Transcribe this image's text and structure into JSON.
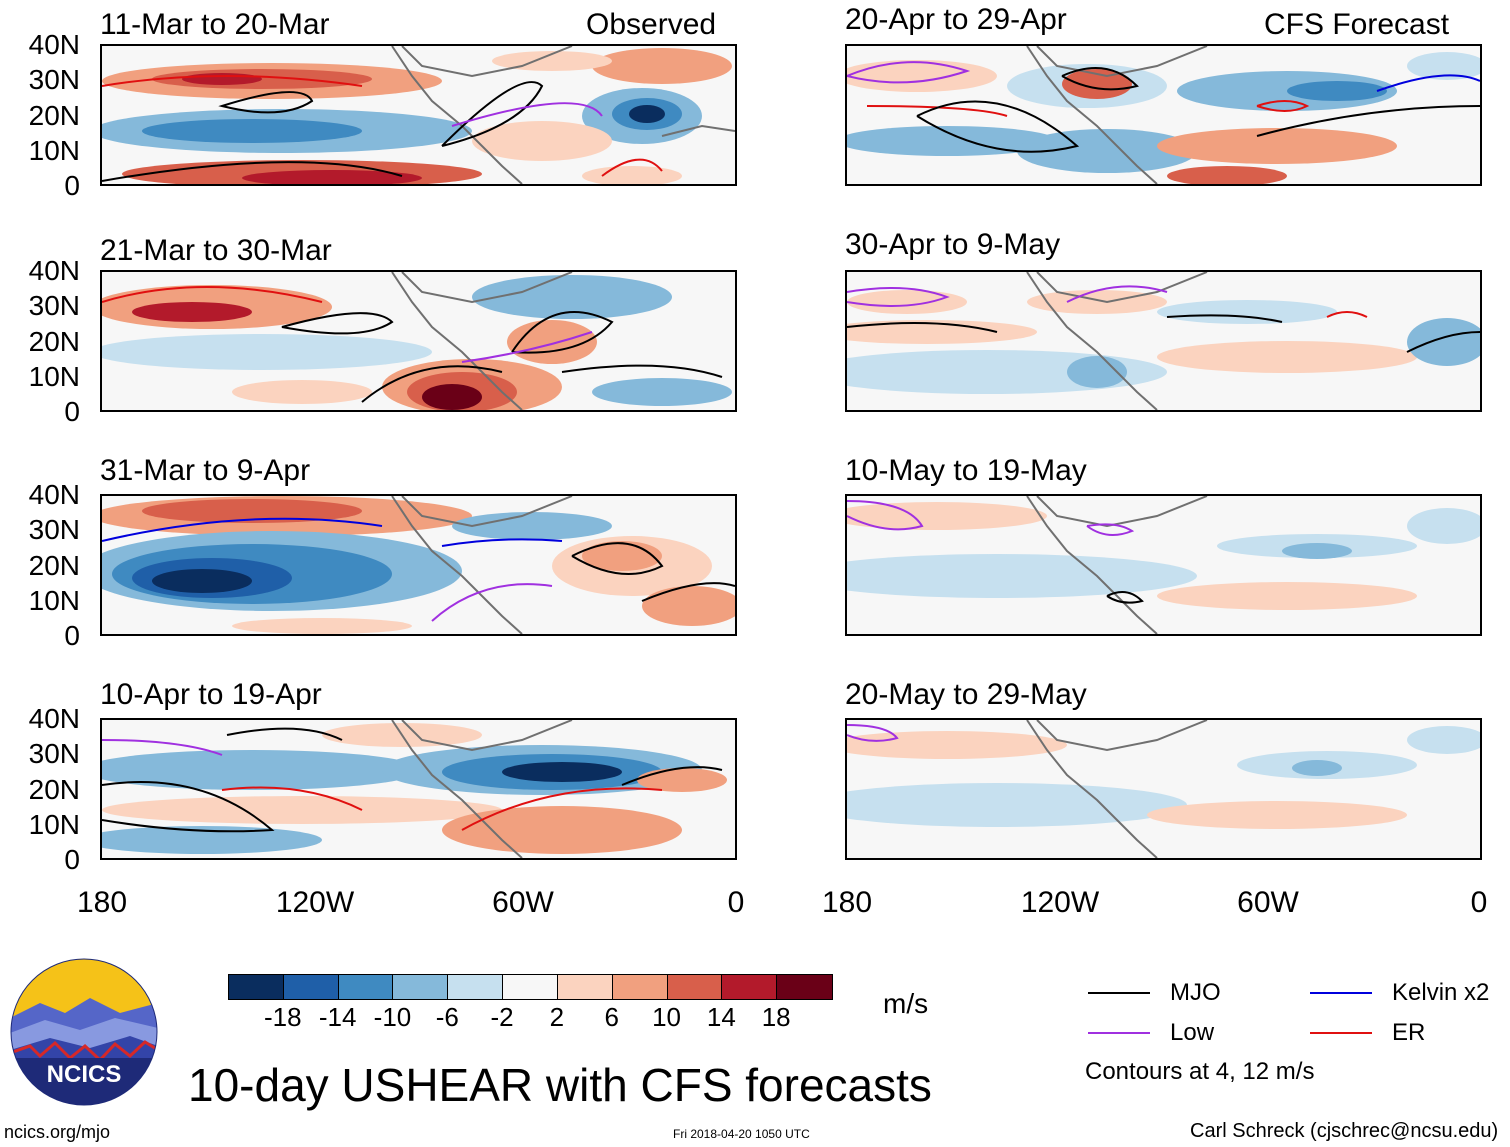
{
  "title": "10-day USHEAR with CFS forecasts",
  "units": "m/s",
  "left_column_tag": "Observed",
  "right_column_tag": "CFS Forecast",
  "panels_left": [
    {
      "title": "11-Mar to 20-Mar"
    },
    {
      "title": "21-Mar to 30-Mar"
    },
    {
      "title": "31-Mar to 9-Apr"
    },
    {
      "title": "10-Apr to 19-Apr"
    }
  ],
  "panels_right": [
    {
      "title": "20-Apr to 29-Apr"
    },
    {
      "title": "30-Apr to 9-May"
    },
    {
      "title": "10-May to 19-May"
    },
    {
      "title": "20-May to 29-May"
    }
  ],
  "lat_labels": [
    "40N",
    "30N",
    "20N",
    "10N",
    "0"
  ],
  "lon_labels": [
    "180",
    "120W",
    "60W",
    "0"
  ],
  "colorbar": {
    "colors": [
      "#0a2d5e",
      "#1f5fa8",
      "#3f8ac1",
      "#85b9da",
      "#c6e0ef",
      "#f7f7f7",
      "#fbd3bf",
      "#f1a07f",
      "#d85f4b",
      "#b31a2b",
      "#6a0017"
    ],
    "labels": [
      "-18",
      "-14",
      "-10",
      "-6",
      "-2",
      "2",
      "6",
      "10",
      "14",
      "18"
    ]
  },
  "legend": {
    "items": [
      {
        "label": "MJO",
        "color": "#000000"
      },
      {
        "label": "Kelvin x2",
        "color": "#0000dd"
      },
      {
        "label": "Low",
        "color": "#a030e0"
      },
      {
        "label": "ER",
        "color": "#e01010"
      }
    ],
    "contour_note": "Contours at 4, 12 m/s"
  },
  "footer": {
    "website": "ncics.org/mjo",
    "timestamp": "Fri 2018-04-20 1050 UTC",
    "author": "Carl Schreck (cjschrec@ncsu.edu)",
    "logo_text": "NCICS"
  }
}
